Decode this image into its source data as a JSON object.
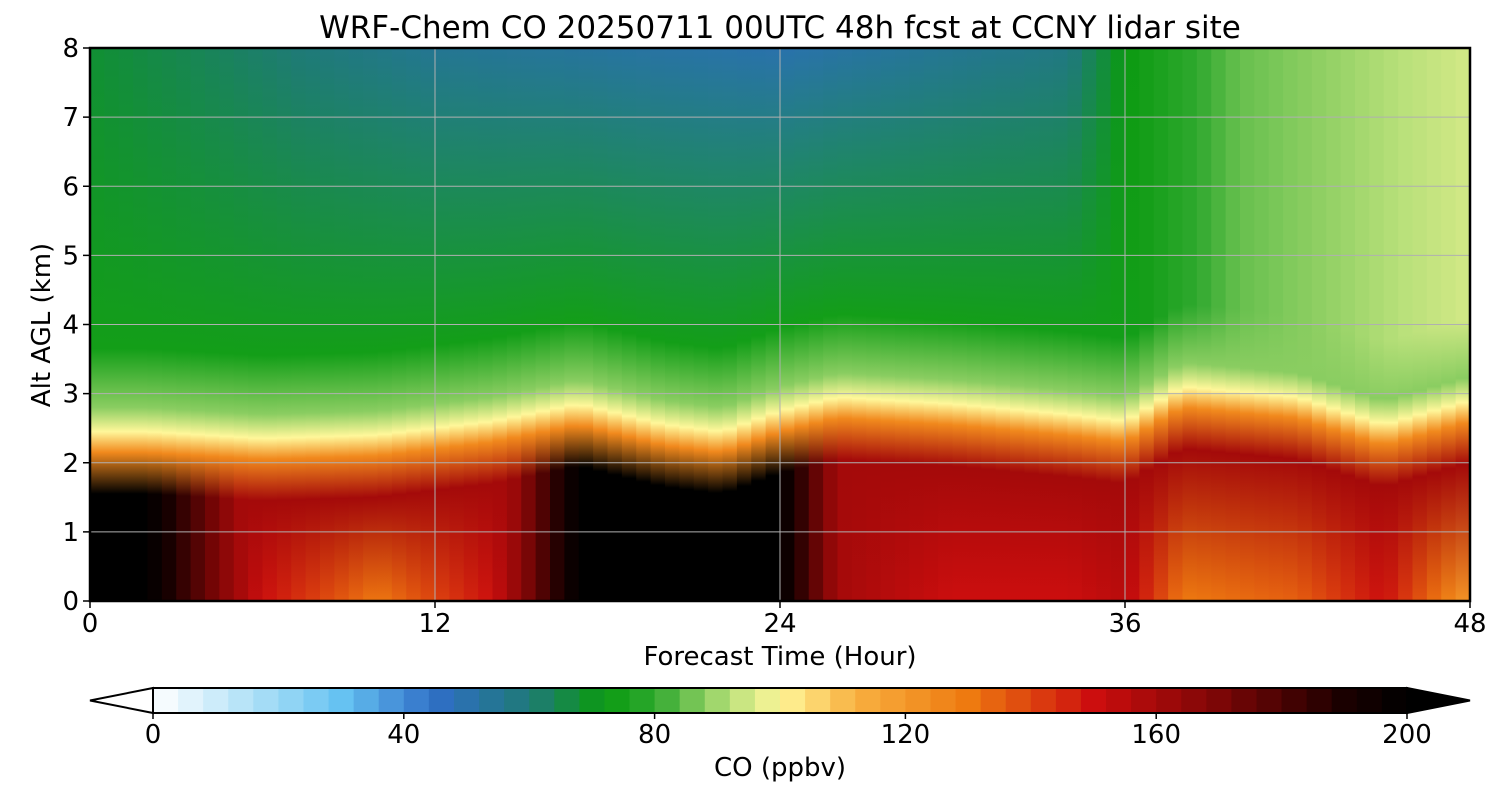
{
  "chart_data": {
    "type": "heatmap",
    "title": "WRF-Chem CO  20250711 00UTC 48h fcst at CCNY lidar site",
    "xlabel": "Forecast Time (Hour)",
    "ylabel": "Alt AGL (km)",
    "xlim": [
      0,
      48
    ],
    "ylim": [
      0,
      8
    ],
    "xticks": [
      "0",
      "12",
      "24",
      "36",
      "48"
    ],
    "yticks": [
      "0",
      "1",
      "2",
      "3",
      "4",
      "5",
      "6",
      "7",
      "8"
    ],
    "grid": true,
    "colorbar": {
      "label": "CO  (ppbv)",
      "range": [
        0,
        200
      ],
      "ticks": [
        "0",
        "40",
        "80",
        "120",
        "160",
        "200"
      ],
      "extend": "both",
      "stops": [
        {
          "value": 0,
          "color": "#ffffff"
        },
        {
          "value": 20,
          "color": "#9ad8f5"
        },
        {
          "value": 30,
          "color": "#66c2f2"
        },
        {
          "value": 45,
          "color": "#2f6ec6"
        },
        {
          "value": 60,
          "color": "#1f7a78"
        },
        {
          "value": 72,
          "color": "#0a9a10"
        },
        {
          "value": 80,
          "color": "#2ea82e"
        },
        {
          "value": 92,
          "color": "#b8e07a"
        },
        {
          "value": 100,
          "color": "#fff79a"
        },
        {
          "value": 112,
          "color": "#f8b040"
        },
        {
          "value": 130,
          "color": "#ee7a10"
        },
        {
          "value": 150,
          "color": "#cc0e0e"
        },
        {
          "value": 170,
          "color": "#7c0606"
        },
        {
          "value": 190,
          "color": "#1a0000"
        },
        {
          "value": 200,
          "color": "#000000"
        }
      ]
    },
    "layers": {
      "surface_layer_top_km": [
        [
          0,
          2.45
        ],
        [
          2,
          2.45
        ],
        [
          6,
          2.35
        ],
        [
          10,
          2.4
        ],
        [
          14,
          2.6
        ],
        [
          17,
          2.85
        ],
        [
          20,
          2.55
        ],
        [
          22,
          2.45
        ],
        [
          24,
          2.75
        ],
        [
          26,
          2.95
        ],
        [
          30,
          2.85
        ],
        [
          34,
          2.7
        ],
        [
          36,
          2.6
        ],
        [
          38,
          3.1
        ],
        [
          42,
          2.95
        ],
        [
          45,
          2.55
        ],
        [
          48,
          2.9
        ]
      ],
      "surface_layer_concentration_ppbv": [
        [
          0,
          200
        ],
        [
          2,
          200
        ],
        [
          6,
          150
        ],
        [
          10,
          130
        ],
        [
          14,
          150
        ],
        [
          17,
          200
        ],
        [
          24,
          200
        ],
        [
          26,
          160
        ],
        [
          30,
          150
        ],
        [
          34,
          150
        ],
        [
          36,
          155
        ],
        [
          38,
          130
        ],
        [
          42,
          135
        ],
        [
          45,
          150
        ],
        [
          48,
          120
        ]
      ],
      "free_troposphere_ppbv": [
        [
          0,
          68
        ],
        [
          12,
          55
        ],
        [
          24,
          50
        ],
        [
          30,
          55
        ],
        [
          34,
          58
        ],
        [
          36,
          72
        ],
        [
          40,
          85
        ],
        [
          44,
          90
        ],
        [
          48,
          95
        ]
      ]
    }
  }
}
